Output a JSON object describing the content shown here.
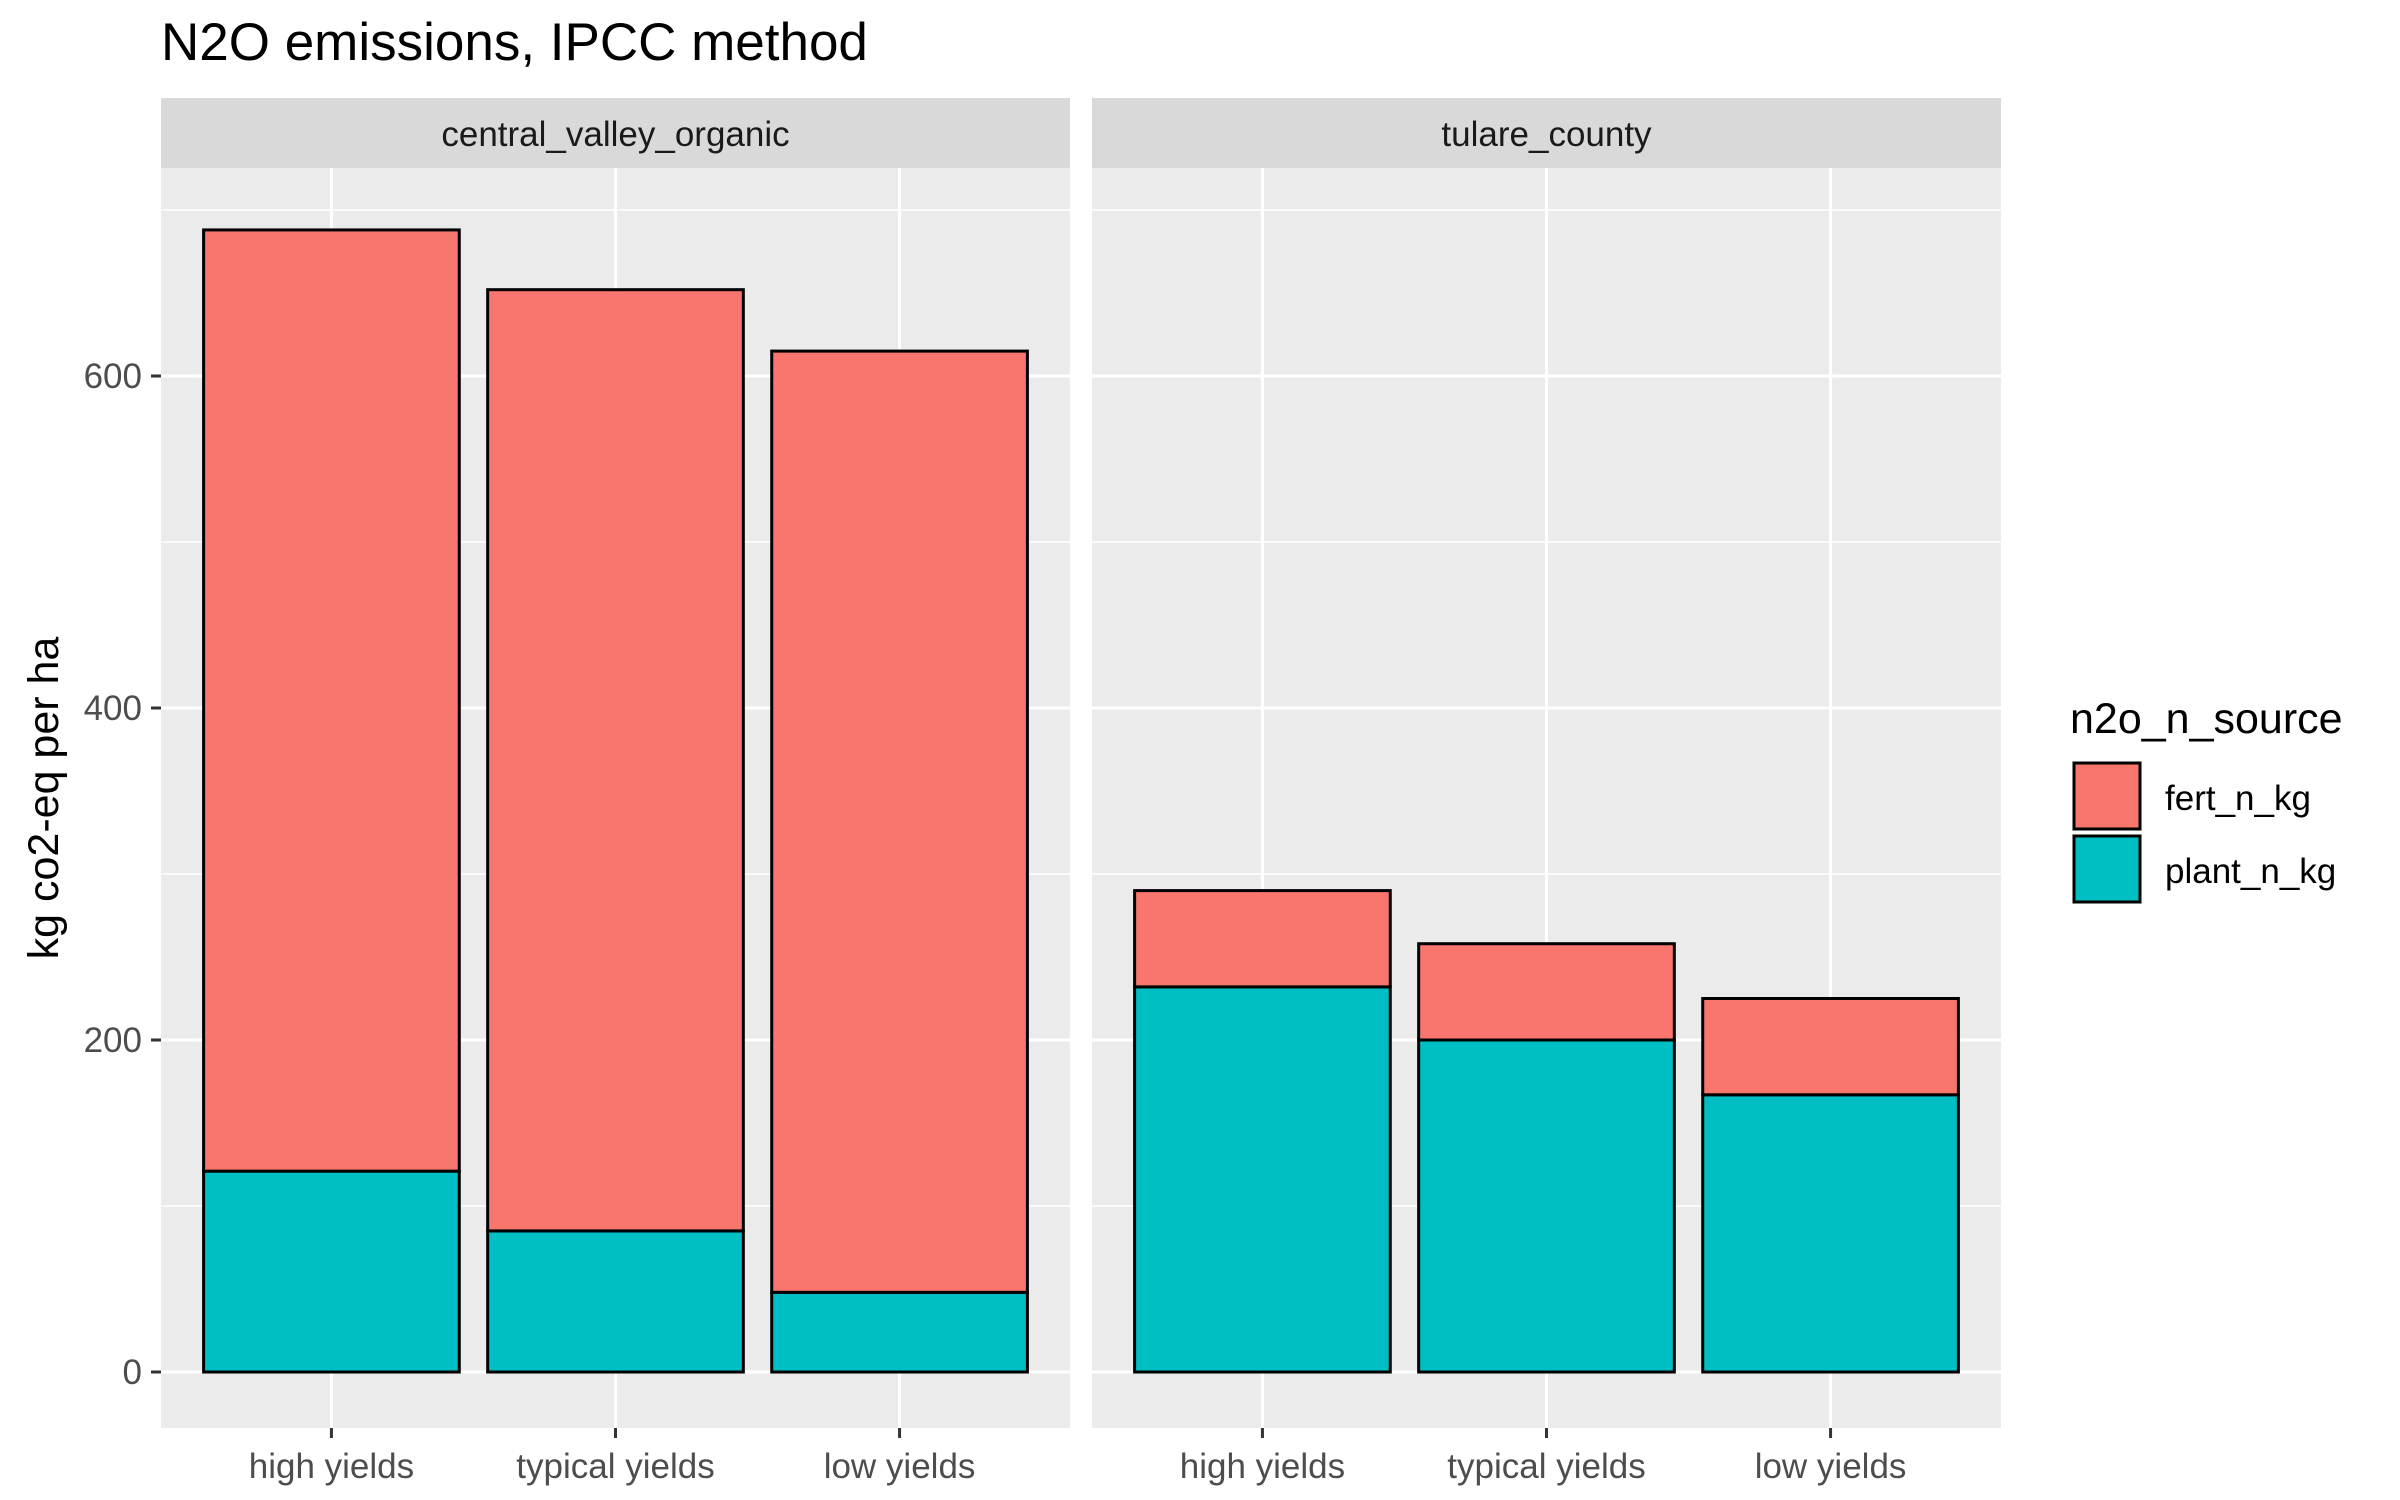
{
  "chart_data": {
    "type": "bar",
    "stacked": true,
    "title": "N2O emissions, IPCC method",
    "xlabel": "",
    "ylabel": "kg co2-eq per ha",
    "ylim": [
      0,
      700
    ],
    "y_ticks": [
      0,
      200,
      400,
      600
    ],
    "categories": [
      "high yields",
      "typical yields",
      "low yields"
    ],
    "grid": true,
    "legend": {
      "title": "n2o_n_source",
      "position": "right",
      "entries": [
        {
          "name": "fert_n_kg",
          "color": "#F8766D"
        },
        {
          "name": "plant_n_kg",
          "color": "#00BFC4"
        }
      ]
    },
    "facets": [
      {
        "label": "central_valley_organic",
        "series": [
          {
            "name": "plant_n_kg",
            "values": [
              121,
              85,
              48
            ]
          },
          {
            "name": "fert_n_kg",
            "values": [
              567,
              567,
              567
            ]
          }
        ]
      },
      {
        "label": "tulare_county",
        "series": [
          {
            "name": "plant_n_kg",
            "values": [
              232,
              200,
              167
            ]
          },
          {
            "name": "fert_n_kg",
            "values": [
              58,
              58,
              58
            ]
          }
        ]
      }
    ],
    "colors": {
      "panel_background": "#EBEBEB",
      "strip_background": "#D9D9D9",
      "grid": "#FFFFFF",
      "bar_outline": "#000000"
    }
  }
}
